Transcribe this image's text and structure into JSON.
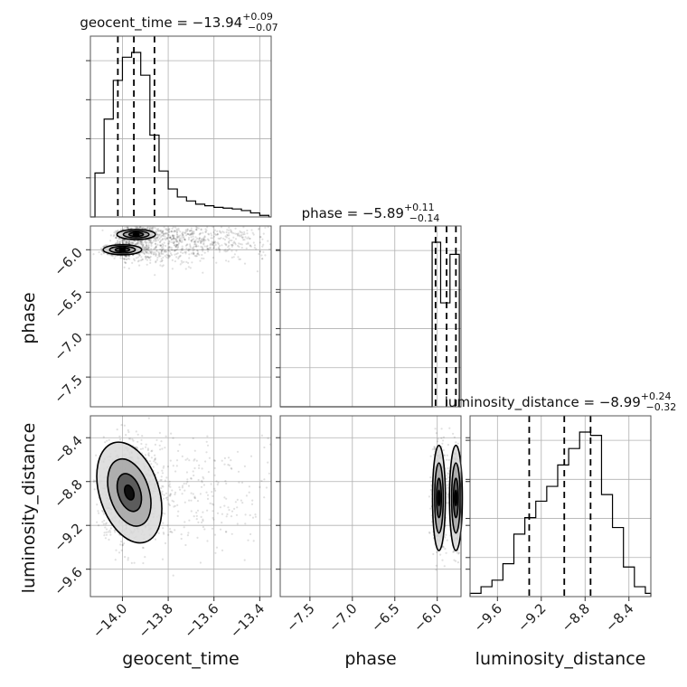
{
  "chart_data": [
    {
      "type": "histogram",
      "parameter": "geocent_time",
      "title": {
        "prefix": "geocent_time = ",
        "value": "−13.94",
        "plus": "+0.09",
        "minus": "−0.07"
      },
      "xlim": [
        -14.14,
        -13.35
      ],
      "quantiles": [
        -14.02,
        -13.95,
        -13.86
      ],
      "bin_edges": [
        -14.12,
        -14.08,
        -14.04,
        -14.0,
        -13.96,
        -13.92,
        -13.88,
        -13.84,
        -13.8,
        -13.76,
        -13.72,
        -13.68,
        -13.64,
        -13.6,
        -13.56,
        -13.52,
        -13.48,
        -13.44,
        -13.4,
        -13.36
      ],
      "counts": [
        110,
        245,
        342,
        400,
        412,
        355,
        205,
        115,
        70,
        50,
        40,
        32,
        28,
        24,
        22,
        20,
        16,
        10,
        4
      ]
    },
    {
      "type": "scatter-density",
      "x_parameter": "geocent_time",
      "y_parameter": "phase",
      "xlim": [
        -14.14,
        -13.35
      ],
      "ylim": [
        -7.85,
        -5.72
      ],
      "yticks": [
        "−6.0",
        "−6.5",
        "−7.0",
        "−7.5"
      ],
      "cores": [
        {
          "x": -13.94,
          "y": -5.82,
          "weight": 1.0
        },
        {
          "x": -14.0,
          "y": -6.0,
          "weight": 0.9
        }
      ]
    },
    {
      "type": "histogram",
      "parameter": "phase",
      "title": {
        "prefix": "phase = ",
        "value": "−5.89",
        "plus": "+0.11",
        "minus": "−0.14"
      },
      "xlim": [
        -7.85,
        -5.72
      ],
      "quantiles": [
        -6.02,
        -5.89,
        -5.78
      ],
      "bin_edges": [
        -6.06,
        -5.96,
        -5.85,
        -5.74
      ],
      "counts": [
        95,
        60,
        88
      ]
    },
    {
      "type": "scatter-density",
      "x_parameter": "geocent_time",
      "y_parameter": "luminosity_distance",
      "xlim": [
        -14.14,
        -13.35
      ],
      "ylim": [
        -9.85,
        -8.2
      ],
      "cores": [
        {
          "x": -13.97,
          "y": -8.9,
          "weight": 1.0
        }
      ]
    },
    {
      "type": "scatter-density",
      "x_parameter": "phase",
      "y_parameter": "luminosity_distance",
      "xlim": [
        -7.85,
        -5.72
      ],
      "ylim": [
        -9.85,
        -8.2
      ],
      "cores": [
        {
          "x": -5.98,
          "y": -8.95,
          "weight": 1.0
        },
        {
          "x": -5.78,
          "y": -8.95,
          "weight": 0.85
        }
      ]
    },
    {
      "type": "histogram",
      "parameter": "luminosity_distance",
      "title": {
        "prefix": "luminosity_distance = ",
        "value": "−8.99",
        "plus": "+0.24",
        "minus": "−0.32"
      },
      "xlim": [
        -9.85,
        -8.2
      ],
      "quantiles": [
        -9.31,
        -8.99,
        -8.75
      ],
      "bin_edges": [
        -9.85,
        -9.75,
        -9.65,
        -9.55,
        -9.45,
        -9.35,
        -9.25,
        -9.15,
        -9.05,
        -8.95,
        -8.85,
        -8.75,
        -8.65,
        -8.55,
        -8.45,
        -8.35,
        -8.25,
        -8.2
      ],
      "counts": [
        2,
        6,
        10,
        20,
        38,
        48,
        58,
        67,
        80,
        90,
        100,
        98,
        62,
        42,
        18,
        6,
        2
      ]
    }
  ],
  "axes": {
    "geocent_time": {
      "label": "geocent_time",
      "ticks": [
        -14.0,
        -13.8,
        -13.6,
        -13.4
      ],
      "tick_labels": [
        "−14.0",
        "−13.8",
        "−13.6",
        "−13.4"
      ]
    },
    "phase": {
      "label": "phase",
      "ticks": [
        -7.5,
        -7.0,
        -6.5,
        -6.0
      ],
      "tick_labels": [
        "−7.5",
        "−7.0",
        "−6.5",
        "−6.0"
      ]
    },
    "luminosity_distance": {
      "label": "luminosity_distance",
      "ticks": [
        -9.6,
        -9.2,
        -8.8,
        -8.4
      ],
      "tick_labels": [
        "−9.6",
        "−9.2",
        "−8.8",
        "−8.4"
      ]
    }
  },
  "colors": {
    "ink": "#000000",
    "grid": "#b0b0b0",
    "frame": "#555555"
  }
}
